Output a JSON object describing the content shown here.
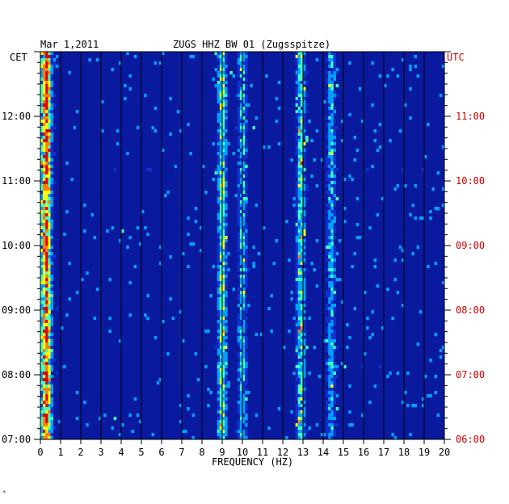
{
  "header": {
    "date": "Mar 1,2011",
    "station": "ZUGS HHZ BW 01 (Zugsspitze)",
    "left_tz": "CET",
    "right_tz": "UTC"
  },
  "footer": {
    "corner_mark": "*"
  },
  "colors": {
    "background_low": "#0a1a9e",
    "grid": "#000000",
    "utc_text": "#cc0000",
    "text": "#000000",
    "palette": [
      "#0000a0",
      "#1030d0",
      "#00a0ff",
      "#40ffc0",
      "#ffff00",
      "#ff8000",
      "#e00000"
    ]
  },
  "chart_data": {
    "type": "heatmap",
    "title": "ZUGS HHZ BW 01 (Zugsspitze)",
    "subtitle": "Mar 1,2011",
    "xlabel": "FREQUENCY (HZ)",
    "ylabel": "",
    "xlim": [
      0,
      20
    ],
    "x_ticks": [
      "0",
      "1",
      "2",
      "3",
      "4",
      "5",
      "6",
      "7",
      "8",
      "9",
      "10",
      "11",
      "12",
      "13",
      "14",
      "15",
      "16",
      "17",
      "18",
      "19",
      "20"
    ],
    "y_left_label": "CET",
    "y_left_ticks": [
      "07:00",
      "08:00",
      "09:00",
      "10:00",
      "11:00",
      "12:00"
    ],
    "y_right_label": "UTC",
    "y_right_ticks": [
      "06:00",
      "07:00",
      "08:00",
      "09:00",
      "10:00",
      "11:00"
    ],
    "ylim_cet_hours": [
      7.0,
      13.0
    ],
    "grid": true,
    "bands": [
      {
        "name": "",
        "freq_hz": 0.3,
        "intensity": 0.85
      },
      {
        "name": "",
        "freq_hz": 9.0,
        "intensity": 0.6
      },
      {
        "name": "",
        "freq_hz": 10.0,
        "intensity": 0.45
      },
      {
        "name": "",
        "freq_hz": 12.9,
        "intensity": 0.5
      },
      {
        "name": "",
        "freq_hz": 14.4,
        "intensity": 0.4
      }
    ]
  }
}
